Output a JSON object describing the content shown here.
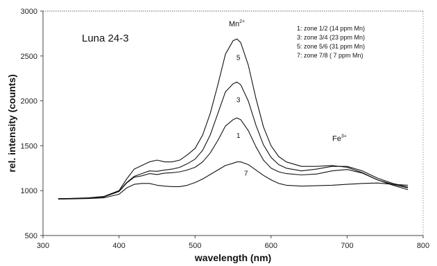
{
  "chart_data": {
    "type": "line",
    "title": "",
    "panel_label": "Luna 24-3",
    "xlabel": "wavelength (nm)",
    "ylabel": "rel. intensity (counts)",
    "xlim": [
      300,
      800
    ],
    "ylim": [
      500,
      3000
    ],
    "x_ticks": [
      300,
      400,
      500,
      600,
      700,
      800
    ],
    "y_ticks": [
      500,
      1000,
      1500,
      2000,
      2500,
      3000
    ],
    "grid": "horizontal dotted at 500 and 3000",
    "legend_position": "top-right",
    "legend": [
      "1: zone 1/2 (14 ppm Mn)",
      "3: zone 3/4 (23 ppm Mn)",
      "5: zone 5/6 (31 ppm Mn)",
      "7: zone 7/8 ( 7 ppm Mn)"
    ],
    "annotations": [
      {
        "base": "Mn",
        "sup": "2+",
        "x": 555,
        "y": 2830
      },
      {
        "base": "Fe",
        "sup": "3+",
        "x": 690,
        "y": 1555
      }
    ],
    "x": [
      320,
      340,
      360,
      380,
      400,
      410,
      420,
      430,
      440,
      450,
      460,
      470,
      480,
      490,
      500,
      510,
      520,
      530,
      540,
      550,
      555,
      560,
      570,
      580,
      590,
      600,
      610,
      620,
      640,
      660,
      680,
      700,
      720,
      740,
      760,
      780
    ],
    "series": [
      {
        "name": "1",
        "label_at": [
          557,
          1610
        ],
        "values": [
          910,
          912,
          917,
          930,
          990,
          1085,
          1150,
          1165,
          1190,
          1180,
          1195,
          1200,
          1210,
          1230,
          1260,
          1320,
          1420,
          1560,
          1720,
          1790,
          1810,
          1790,
          1670,
          1490,
          1340,
          1250,
          1210,
          1190,
          1175,
          1185,
          1220,
          1235,
          1195,
          1120,
          1070,
          1030
        ]
      },
      {
        "name": "3",
        "label_at": [
          557,
          2010
        ],
        "values": [
          910,
          913,
          918,
          932,
          995,
          1090,
          1160,
          1190,
          1220,
          1215,
          1230,
          1240,
          1260,
          1300,
          1350,
          1450,
          1620,
          1860,
          2100,
          2190,
          2210,
          2180,
          2000,
          1730,
          1510,
          1370,
          1290,
          1250,
          1220,
          1240,
          1270,
          1270,
          1220,
          1140,
          1080,
          1040
        ]
      },
      {
        "name": "5",
        "label_at": [
          557,
          2480
        ],
        "values": [
          910,
          914,
          920,
          935,
          1000,
          1130,
          1240,
          1280,
          1320,
          1340,
          1320,
          1320,
          1340,
          1400,
          1470,
          1620,
          1860,
          2180,
          2520,
          2670,
          2690,
          2650,
          2400,
          2030,
          1710,
          1500,
          1380,
          1320,
          1270,
          1270,
          1280,
          1260,
          1200,
          1120,
          1060,
          1010
        ]
      },
      {
        "name": "7",
        "label_at": [
          567,
          1190
        ],
        "values": [
          905,
          908,
          912,
          920,
          960,
          1030,
          1070,
          1080,
          1080,
          1060,
          1050,
          1045,
          1045,
          1060,
          1090,
          1130,
          1180,
          1230,
          1280,
          1305,
          1320,
          1320,
          1290,
          1230,
          1170,
          1120,
          1080,
          1060,
          1050,
          1055,
          1060,
          1070,
          1080,
          1085,
          1070,
          1060
        ]
      }
    ]
  }
}
